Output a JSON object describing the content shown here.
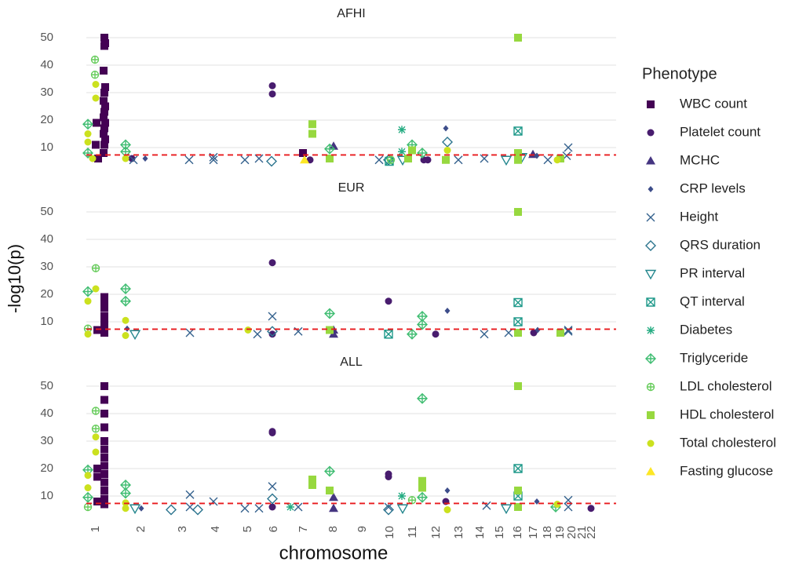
{
  "chart_data": {
    "type": "scatter",
    "facets": [
      "AFHI",
      "EUR",
      "ALL"
    ],
    "xlabel": "chromosome",
    "ylabel": "-log10(p)",
    "legend_title": "Phenotype",
    "legend_position": "right",
    "grid": true,
    "threshold": 7.3,
    "threshold_color": "#e8191c",
    "xlim": [
      0,
      675
    ],
    "ylim": [
      4.5,
      52
    ],
    "yticks": [
      10,
      20,
      30,
      40,
      50
    ],
    "xticks": [
      {
        "value": 12,
        "label": "1"
      },
      {
        "value": 70,
        "label": "2"
      },
      {
        "value": 123,
        "label": "3"
      },
      {
        "value": 165,
        "label": "4"
      },
      {
        "value": 206,
        "label": "5"
      },
      {
        "value": 239,
        "label": "6"
      },
      {
        "value": 277,
        "label": "7"
      },
      {
        "value": 315,
        "label": "8"
      },
      {
        "value": 352,
        "label": "9"
      },
      {
        "value": 387,
        "label": "10"
      },
      {
        "value": 416,
        "label": "11"
      },
      {
        "value": 446,
        "label": "12"
      },
      {
        "value": 475,
        "label": "13"
      },
      {
        "value": 502,
        "label": "14"
      },
      {
        "value": 527,
        "label": "15"
      },
      {
        "value": 550,
        "label": "16"
      },
      {
        "value": 570,
        "label": "17"
      },
      {
        "value": 588,
        "label": "18"
      },
      {
        "value": 604,
        "label": "19"
      },
      {
        "value": 619,
        "label": "20"
      },
      {
        "value": 632,
        "label": "21"
      },
      {
        "value": 644,
        "label": "22"
      }
    ],
    "series": [
      {
        "name": "WBC count",
        "color": "#440154",
        "marker": "square",
        "panels": [
          {
            "x": [
              23,
              24,
              23,
              22,
              24,
              23,
              22,
              24,
              23,
              22,
              24,
              23,
              22,
              24,
              23,
              22,
              13,
              12,
              15,
              276
            ],
            "y": [
              50,
              48,
              47,
              38,
              32,
              30,
              27,
              25,
              23,
              21,
              19,
              17,
              15,
              13,
              11,
              8,
              19,
              11,
              6,
              8
            ]
          },
          {
            "x": [
              23,
              23,
              23,
              23,
              23,
              23,
              23,
              14
            ],
            "y": [
              19,
              17,
              15,
              12,
              10,
              8,
              6,
              7
            ]
          },
          {
            "x": [
              23,
              23,
              23,
              23,
              23,
              23,
              23,
              23,
              23,
              23,
              23,
              23,
              23,
              14,
              14,
              14
            ],
            "y": [
              50,
              45,
              40,
              35,
              30,
              27,
              24,
              21,
              18,
              15,
              12,
              9,
              7,
              20,
              17,
              8
            ]
          }
        ]
      },
      {
        "name": "Platelet count",
        "color": "#481c6e",
        "marker": "circle",
        "panels": [
          {
            "x": [
              237,
              237,
              285,
              430,
              435,
              58
            ],
            "y": [
              32.5,
              29.5,
              5.5,
              5.5,
              5.5,
              6
            ]
          },
          {
            "x": [
              237,
              237,
              385,
              445,
              570
            ],
            "y": [
              31.5,
              5.5,
              17.5,
              5.5,
              6
            ]
          },
          {
            "x": [
              237,
              237,
              385,
              385,
              458,
              643,
              237
            ],
            "y": [
              33.5,
              33,
              18,
              17,
              8,
              5.5,
              6
            ]
          }
        ]
      },
      {
        "name": "MCHC",
        "color": "#453581",
        "marker": "triangle",
        "panels": [
          {
            "x": [
              315,
              569
            ],
            "y": [
              10.5,
              7.5
            ]
          },
          {
            "x": [
              315,
              315
            ],
            "y": [
              7,
              5.5
            ]
          },
          {
            "x": [
              315,
              315
            ],
            "y": [
              9.5,
              5.5
            ]
          }
        ]
      },
      {
        "name": "CRP levels",
        "color": "#3d4d8a",
        "marker": "smalldiamond",
        "panels": [
          {
            "x": [
              458,
              75,
              574
            ],
            "y": [
              17,
              6,
              7
            ]
          },
          {
            "x": [
              460,
              52,
              575
            ],
            "y": [
              14,
              7.5,
              7
            ]
          },
          {
            "x": [
              460,
              70,
              574
            ],
            "y": [
              12,
              5.5,
              8
            ]
          }
        ]
      },
      {
        "name": "Height",
        "color": "#34618d",
        "marker": "cross",
        "panels": [
          {
            "x": [
              60,
              131,
              162,
              162,
              202,
              220,
              373,
              474,
              507,
              588,
              614,
              612
            ],
            "y": [
              5.5,
              5.5,
              6.5,
              5.5,
              5.5,
              6,
              5.5,
              5.5,
              6,
              5.5,
              10,
              7
            ]
          },
          {
            "x": [
              237,
              218,
              270,
              132,
              507,
              538,
              614,
              614
            ],
            "y": [
              12,
              5.5,
              6.5,
              6,
              5.5,
              6,
              6.5,
              7
            ]
          },
          {
            "x": [
              132,
              132,
              162,
              202,
              220,
              237,
              270,
              385,
              510,
              614,
              614
            ],
            "y": [
              10.5,
              6,
              8,
              5.5,
              5.5,
              13.5,
              6,
              6,
              6.5,
              8.5,
              6
            ]
          }
        ]
      },
      {
        "name": "QRS duration",
        "color": "#2b748e",
        "marker": "diamond",
        "panels": [
          {
            "x": [
              236,
              460,
              385
            ],
            "y": [
              5,
              12,
              5.5
            ]
          },
          {
            "x": [
              237
            ],
            "y": [
              6.5
            ]
          },
          {
            "x": [
              108,
              142,
              237,
              385
            ],
            "y": [
              5,
              5,
              9,
              5
            ]
          }
        ]
      },
      {
        "name": "PR interval",
        "color": "#24878e",
        "marker": "tridown",
        "panels": [
          {
            "x": [
              403,
              535,
              555
            ],
            "y": [
              5.5,
              5.5,
              6.5
            ]
          },
          {
            "x": [
              62
            ],
            "y": [
              5.5
            ]
          },
          {
            "x": [
              62,
              403,
              535
            ],
            "y": [
              5.5,
              5.5,
              5.5
            ]
          }
        ]
      },
      {
        "name": "QT interval",
        "color": "#1f998a",
        "marker": "boxcross",
        "panels": [
          {
            "x": [
              550,
              386
            ],
            "y": [
              16,
              5
            ]
          },
          {
            "x": [
              550,
              550,
              385
            ],
            "y": [
              17,
              10,
              5.5
            ]
          },
          {
            "x": [
              550,
              550
            ],
            "y": [
              20,
              10
            ]
          }
        ]
      },
      {
        "name": "Diabetes",
        "color": "#25ac82",
        "marker": "asterisk",
        "panels": [
          {
            "x": [
              402,
              402
            ],
            "y": [
              16.5,
              8.5
            ]
          },
          {
            "x": [],
            "y": []
          },
          {
            "x": [
              402,
              260
            ],
            "y": [
              10,
              6
            ]
          }
        ]
      },
      {
        "name": "Triglyceride",
        "color": "#40bd72",
        "marker": "diamondplus",
        "panels": [
          {
            "x": [
              2,
              2,
              50,
              50,
              310,
              415,
              428
            ],
            "y": [
              18.5,
              8,
              11,
              8.5,
              9.5,
              11,
              8
            ]
          },
          {
            "x": [
              2,
              50,
              50,
              310,
              428,
              428,
              415
            ],
            "y": [
              21,
              22,
              17.5,
              13,
              12,
              9,
              5.5
            ]
          },
          {
            "x": [
              2,
              2,
              50,
              50,
              310,
              428,
              428,
              598
            ],
            "y": [
              19.5,
              9.5,
              14,
              11,
              19,
              45.5,
              9.5,
              6
            ]
          }
        ]
      },
      {
        "name": "LDL cholesterol",
        "color": "#67cc5c",
        "marker": "circleplus",
        "panels": [
          {
            "x": [
              11,
              11,
              388
            ],
            "y": [
              42,
              36.5,
              5.5
            ]
          },
          {
            "x": [
              12,
              2
            ],
            "y": [
              29.5,
              7.5
            ]
          },
          {
            "x": [
              12,
              12,
              2,
              415
            ],
            "y": [
              41,
              34.5,
              6,
              8.5
            ]
          }
        ]
      },
      {
        "name": "HDL cholesterol",
        "color": "#97d83f",
        "marker": "square",
        "panels": [
          {
            "x": [
              288,
              288,
              310,
              458,
              550,
              550,
              550,
              604,
              410,
              415
            ],
            "y": [
              18.5,
              15,
              6,
              5.5,
              50,
              8,
              5.5,
              6,
              6,
              9
            ]
          },
          {
            "x": [
              550,
              550,
              310,
              604
            ],
            "y": [
              50,
              6,
              7,
              6
            ]
          },
          {
            "x": [
              550,
              550,
              550,
              288,
              288,
              428,
              428,
              310
            ],
            "y": [
              50,
              12,
              6,
              16,
              14,
              15.5,
              13,
              12
            ]
          }
        ]
      },
      {
        "name": "Total cholesterol",
        "color": "#cbe11e",
        "marker": "circle",
        "panels": [
          {
            "x": [
              12,
              12,
              2,
              2,
              8,
              50,
              460,
              600
            ],
            "y": [
              33,
              28,
              15,
              12,
              6,
              6,
              9,
              5.5
            ]
          },
          {
            "x": [
              12,
              2,
              50,
              50,
              206,
              2
            ],
            "y": [
              22,
              17.5,
              10.5,
              5,
              7,
              5.5
            ]
          },
          {
            "x": [
              12,
              12,
              2,
              2,
              50,
              50,
              460,
              600
            ],
            "y": [
              31.5,
              26,
              17.5,
              13,
              7.5,
              5.5,
              5,
              7
            ]
          }
        ]
      },
      {
        "name": "Fasting glucose",
        "color": "#fde725",
        "marker": "triangle",
        "panels": [
          {
            "x": [
              278
            ],
            "y": [
              5.5
            ]
          },
          {
            "x": [],
            "y": []
          },
          {
            "x": [],
            "y": []
          }
        ]
      }
    ]
  }
}
